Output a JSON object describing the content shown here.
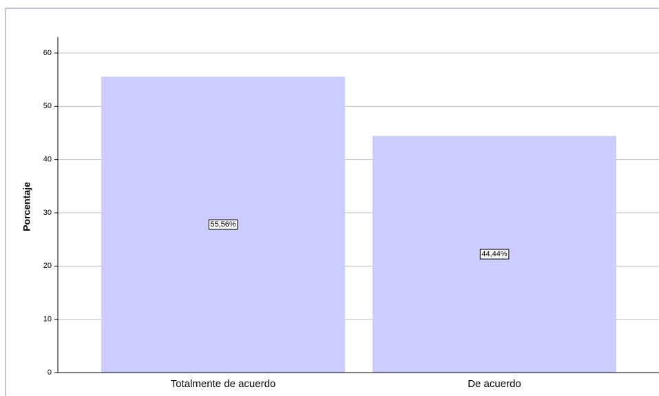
{
  "chart_data": {
    "type": "bar",
    "y_label": "Porcentaje",
    "categories": [
      "Totalmente de acuerdo",
      "De acuerdo"
    ],
    "values": [
      55.56,
      44.44
    ],
    "value_labels": [
      "55,56%",
      "44,44%"
    ],
    "color": "#ccccff",
    "ylim": [
      0,
      63
    ],
    "yticks": [
      0,
      10,
      20,
      30,
      40,
      50,
      60
    ],
    "grid": true
  }
}
